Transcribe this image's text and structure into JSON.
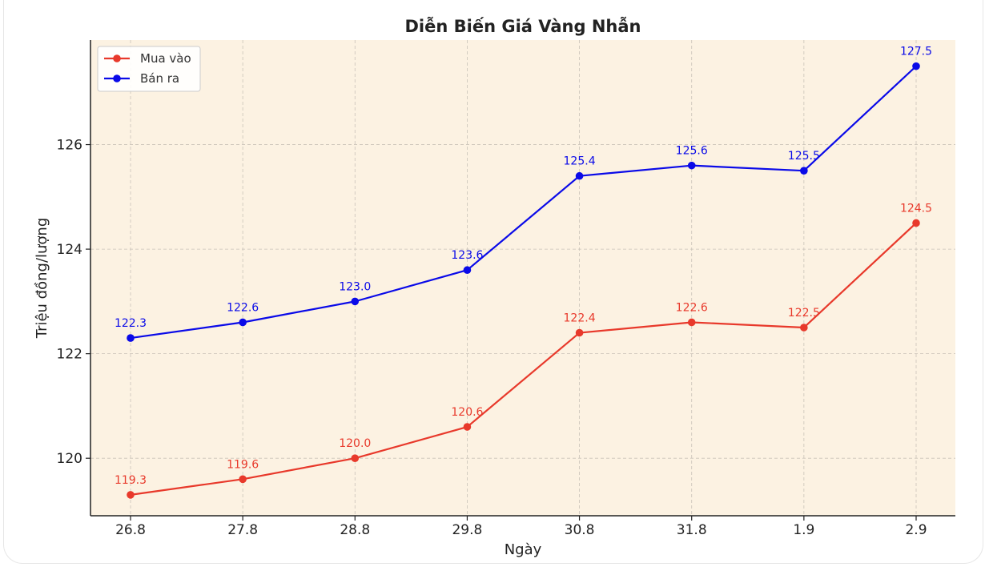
{
  "chart_data": {
    "type": "line",
    "title": "Diễn Biến Giá Vàng Nhẫn",
    "xlabel": "Ngày",
    "ylabel": "Triệu đồng/lượng",
    "categories": [
      "26.8",
      "27.8",
      "28.8",
      "29.8",
      "30.8",
      "31.8",
      "1.9",
      "2.9"
    ],
    "ylim": [
      118.9,
      128.0
    ],
    "yticks": [
      120,
      122,
      124,
      126
    ],
    "grid": true,
    "legend_position": "top-left",
    "plot_background": "#fcf2e2",
    "series": [
      {
        "name": "Mua vào",
        "color": "#e8392b",
        "values": [
          119.3,
          119.6,
          120.0,
          120.6,
          122.4,
          122.6,
          122.5,
          124.5
        ],
        "labels": [
          "119.3",
          "119.6",
          "120.0",
          "120.6",
          "122.4",
          "122.6",
          "122.5",
          "124.5"
        ]
      },
      {
        "name": "Bán ra",
        "color": "#0a0ae8",
        "values": [
          122.3,
          122.6,
          123.0,
          123.6,
          125.4,
          125.6,
          125.5,
          127.5
        ],
        "labels": [
          "122.3",
          "122.6",
          "123.0",
          "123.6",
          "125.4",
          "125.6",
          "125.5",
          "127.5"
        ]
      }
    ]
  }
}
